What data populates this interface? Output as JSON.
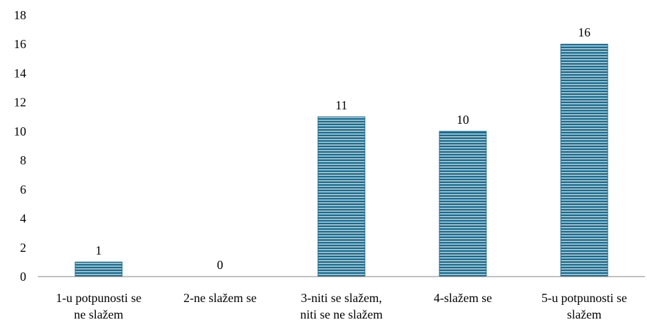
{
  "chart_data": {
    "type": "bar",
    "categories": [
      [
        "1-u potpunosti se",
        "ne slažem"
      ],
      [
        "2-ne slažem se"
      ],
      [
        "3-niti se slažem,",
        "niti se ne slažem"
      ],
      [
        "4-slažem se"
      ],
      [
        "5-u potpunosti se",
        "slažem"
      ]
    ],
    "values": [
      1,
      0,
      11,
      10,
      16
    ],
    "data_labels": [
      "1",
      "0",
      "11",
      "10",
      "16"
    ],
    "yticks": [
      "0",
      "2",
      "4",
      "6",
      "8",
      "10",
      "12",
      "14",
      "16",
      "18"
    ],
    "ylim": [
      0,
      18
    ],
    "title": "",
    "xlabel": "",
    "ylabel": "",
    "grid": false,
    "legend": "none",
    "bar_color": "#1a6a8c",
    "bar_stripe_color": "#ffffff",
    "axis_color": "#808080"
  }
}
